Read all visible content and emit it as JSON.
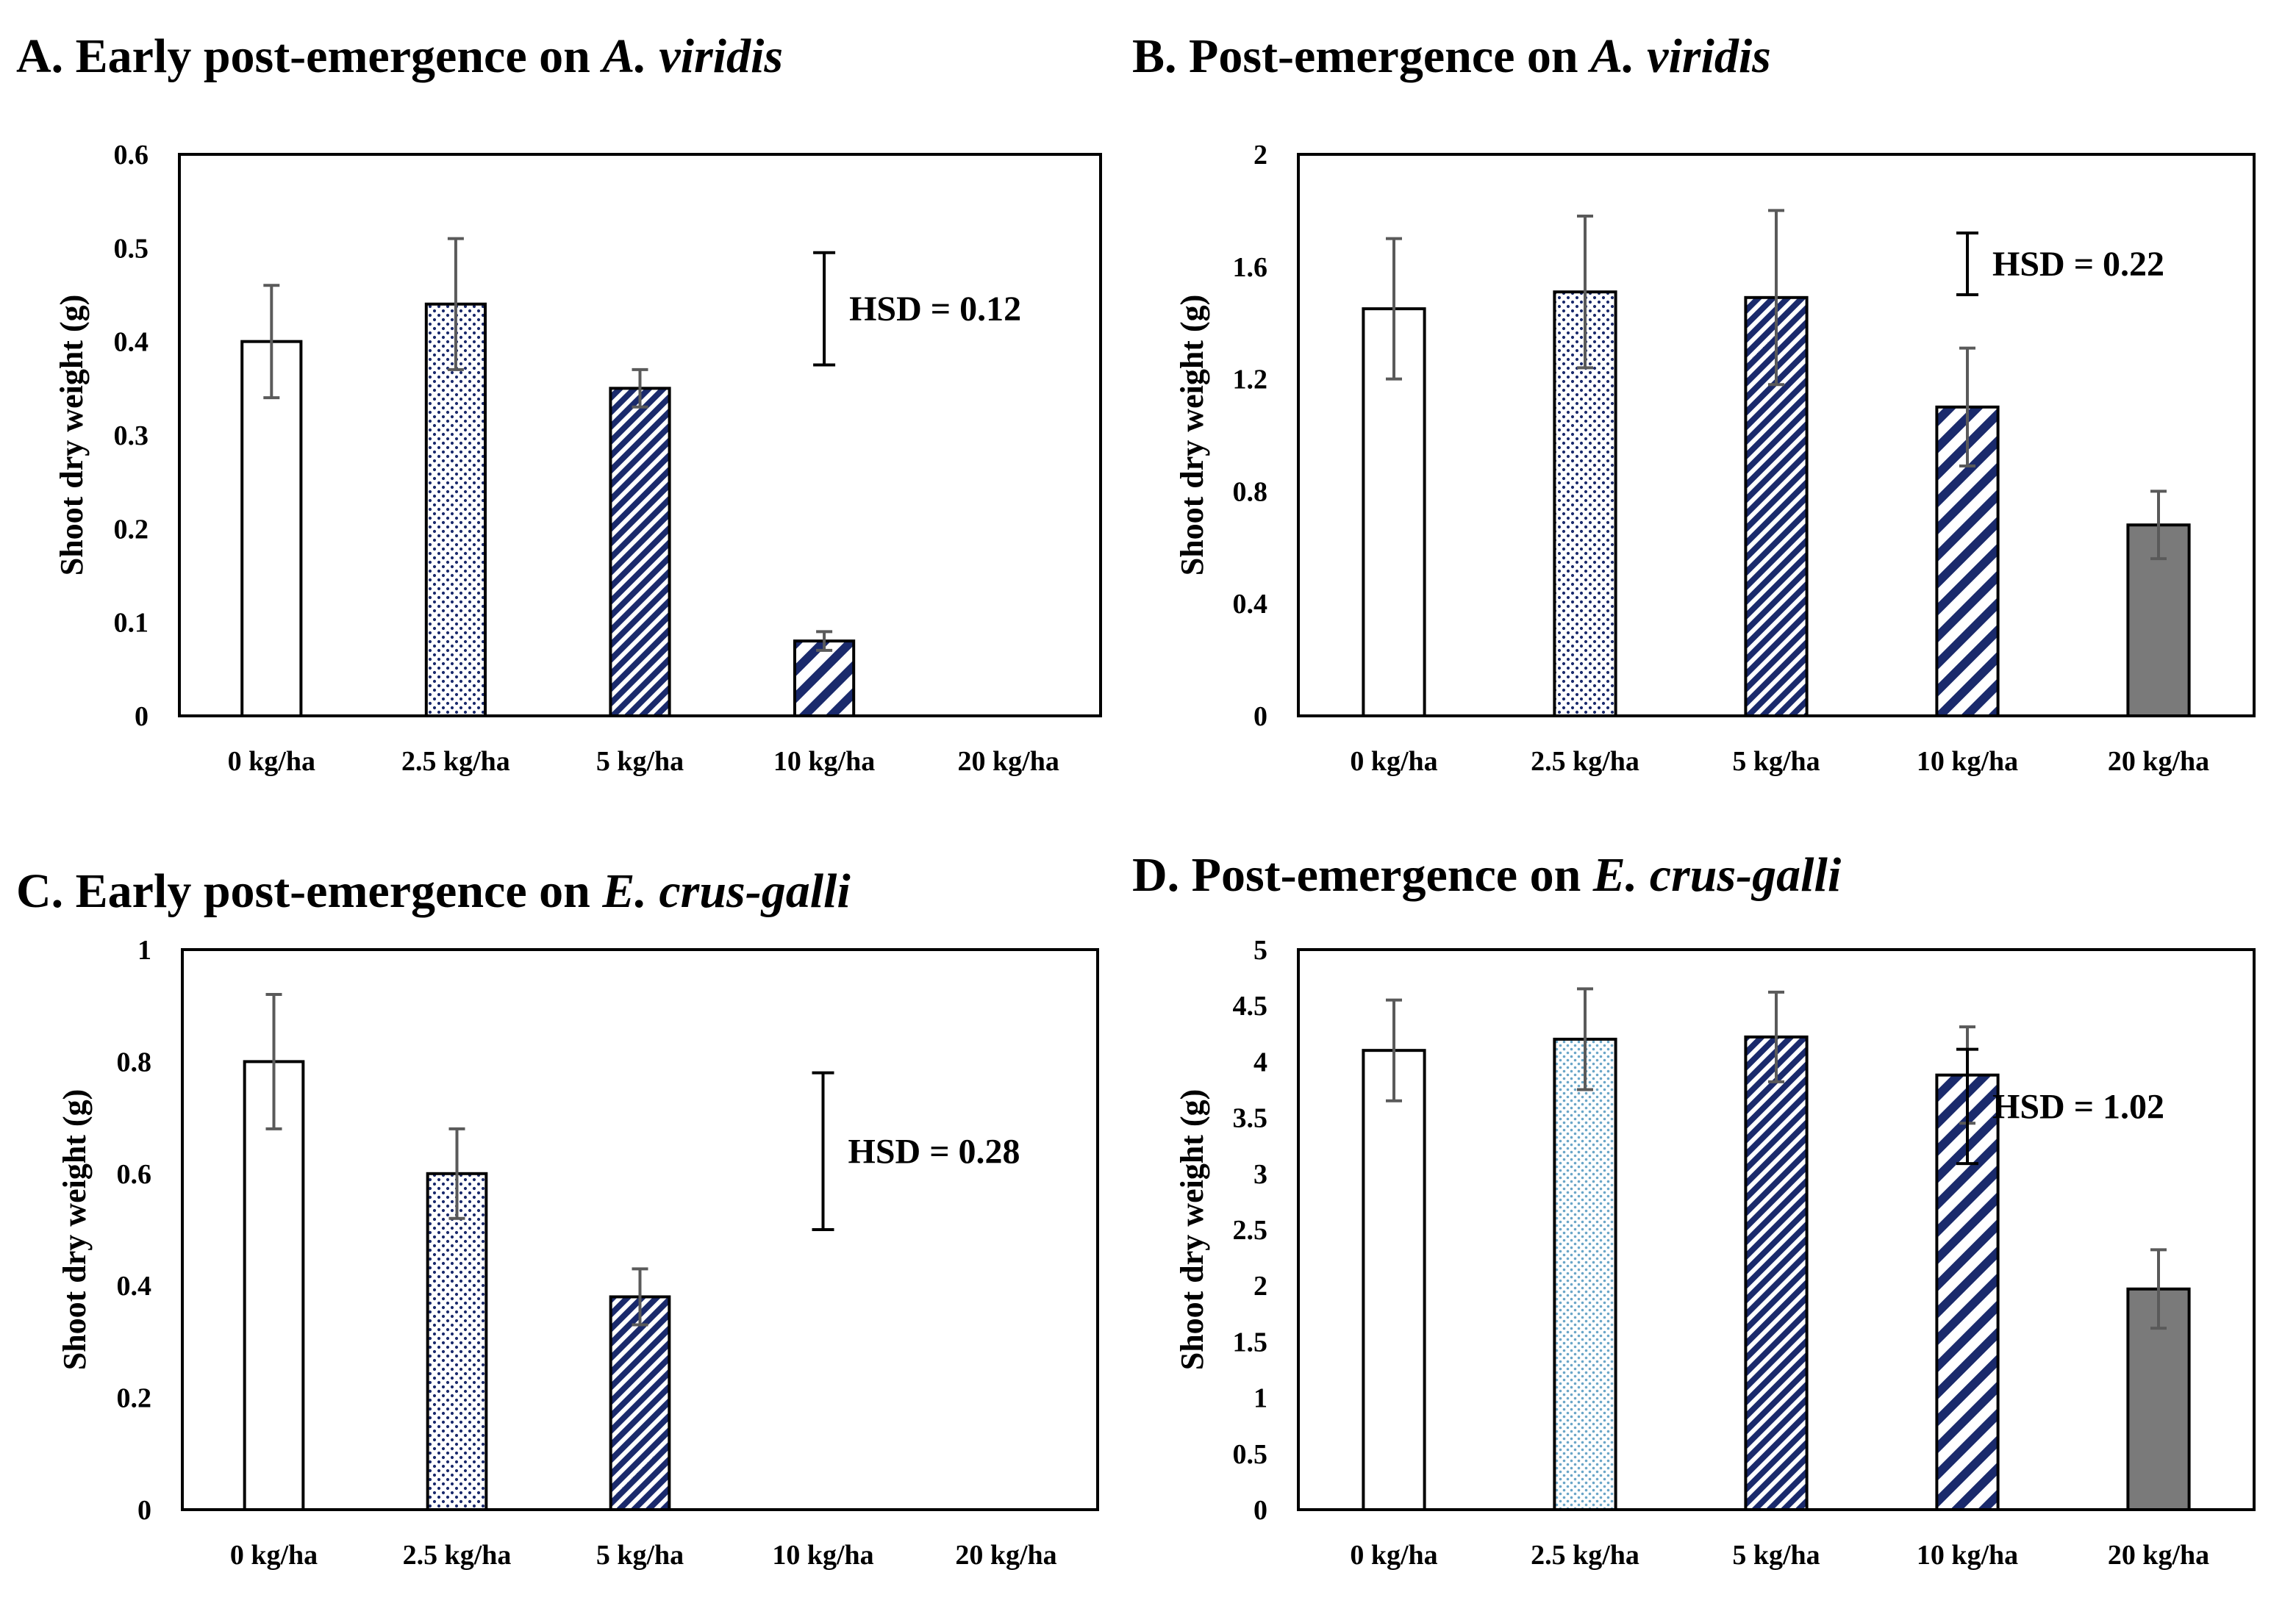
{
  "chart_data": [
    {
      "type": "bar",
      "panel": "A",
      "title": {
        "prefix": "A. Early post-emergence on ",
        "species": "A. viridis"
      },
      "ylabel": "Shoot dry weight (g)",
      "ylim": [
        0,
        0.6
      ],
      "yticks": [
        "0",
        "0.1",
        "0.2",
        "0.3",
        "0.4",
        "0.5",
        "0.6"
      ],
      "categories": [
        "0 kg/ha",
        "2.5 kg/ha",
        "5 kg/ha",
        "10 kg/ha",
        "20 kg/ha"
      ],
      "values": [
        0.4,
        0.44,
        0.35,
        0.08,
        null
      ],
      "errors": [
        0.06,
        0.07,
        0.02,
        0.01,
        null
      ],
      "patterns": [
        "white",
        "dots",
        "dense-hatch",
        "wide-hatch",
        "none"
      ],
      "hsd": {
        "label": "HSD = 0.12",
        "value": 0.12,
        "center": 0.435
      }
    },
    {
      "type": "bar",
      "panel": "B",
      "title": {
        "prefix": "B. Post-emergence on ",
        "species": "A. viridis"
      },
      "ylabel": "Shoot dry weight (g)",
      "ylim": [
        0,
        2
      ],
      "yticks": [
        "0",
        "0.4",
        "0.8",
        "1.2",
        "1.6",
        "2"
      ],
      "categories": [
        "0 kg/ha",
        "2.5 kg/ha",
        "5 kg/ha",
        "10 kg/ha",
        "20 kg/ha"
      ],
      "values": [
        1.45,
        1.51,
        1.49,
        1.1,
        0.68
      ],
      "errors": [
        0.25,
        0.27,
        0.31,
        0.21,
        0.12
      ],
      "patterns": [
        "white",
        "dots",
        "dense-hatch",
        "wide-hatch",
        "gray"
      ],
      "hsd": {
        "label": "HSD = 0.22",
        "value": 0.22,
        "center": 1.61
      }
    },
    {
      "type": "bar",
      "panel": "C",
      "title": {
        "prefix": "C. Early post-emergence on ",
        "species": "E. crus-galli"
      },
      "ylabel": "Shoot dry weight (g)",
      "ylim": [
        0,
        1
      ],
      "yticks": [
        "0",
        "0.2",
        "0.4",
        "0.6",
        "0.8",
        "1"
      ],
      "categories": [
        "0 kg/ha",
        "2.5 kg/ha",
        "5 kg/ha",
        "10 kg/ha",
        "20 kg/ha"
      ],
      "values": [
        0.8,
        0.6,
        0.38,
        null,
        null
      ],
      "errors": [
        0.12,
        0.08,
        0.05,
        null,
        null
      ],
      "patterns": [
        "white",
        "dots",
        "dense-hatch",
        "none",
        "none"
      ],
      "hsd": {
        "label": "HSD = 0.28",
        "value": 0.28,
        "center": 0.64
      }
    },
    {
      "type": "bar",
      "panel": "D",
      "title": {
        "prefix": "D. Post-emergence on ",
        "species": "E. crus-galli"
      },
      "ylabel": "Shoot dry weight (g)",
      "ylim": [
        0,
        5
      ],
      "yticks": [
        "0",
        "0.5",
        "1",
        "1.5",
        "2",
        "2.5",
        "3",
        "3.5",
        "4",
        "4.5",
        "5"
      ],
      "categories": [
        "0 kg/ha",
        "2.5 kg/ha",
        "5 kg/ha",
        "10 kg/ha",
        "20 kg/ha"
      ],
      "values": [
        4.1,
        4.2,
        4.22,
        3.88,
        1.97
      ],
      "errors": [
        0.45,
        0.45,
        0.4,
        0.43,
        0.35
      ],
      "patterns": [
        "white",
        "dots-light",
        "dense-hatch",
        "wide-hatch",
        "gray"
      ],
      "hsd": {
        "label": "HSD = 1.02",
        "value": 1.02,
        "center": 3.6
      }
    }
  ],
  "colors": {
    "navy": "#1a2a6c",
    "lightblue": "#6aa6c8",
    "gray": "#7a7a7a",
    "errorbar": "#5a5a5a",
    "frame": "#000000"
  }
}
